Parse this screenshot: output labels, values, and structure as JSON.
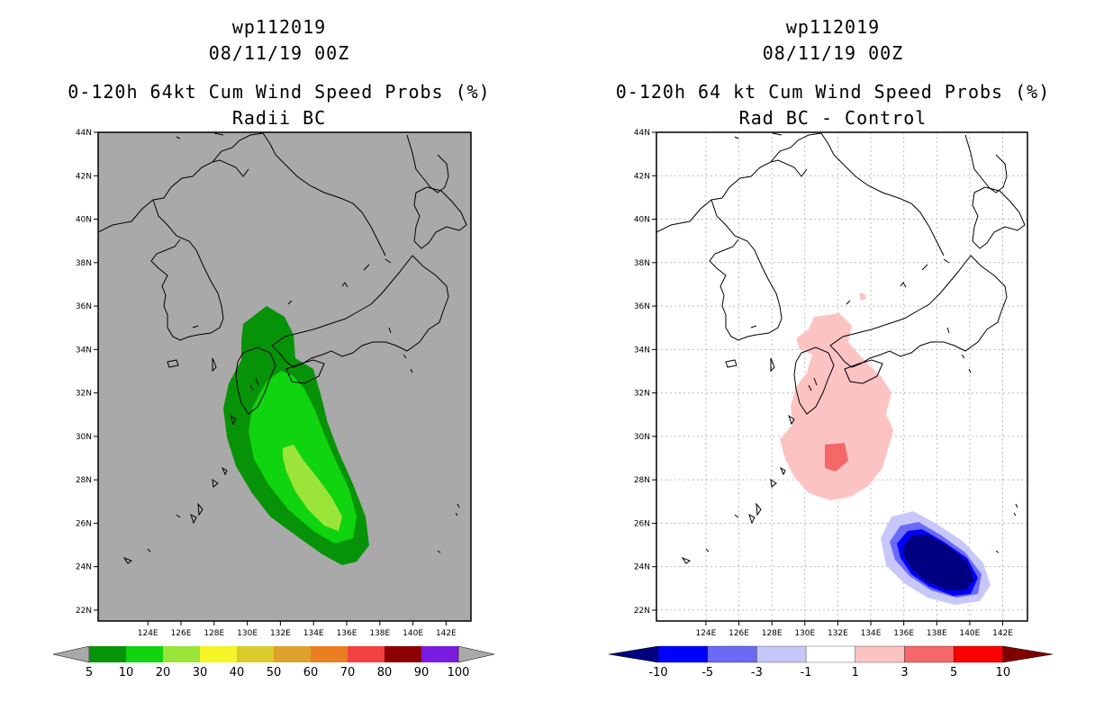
{
  "left_panel": {
    "storm_id": "wp112019",
    "date": "08/11/19 00Z",
    "title": "0-120h 64kt Cum Wind Speed Probs (%)",
    "subtitle": "Radii BC",
    "background_color": "#a9a9a9",
    "colorbar": {
      "labels": [
        "5",
        "10",
        "20",
        "30",
        "40",
        "50",
        "60",
        "70",
        "80",
        "90",
        "100"
      ],
      "colors": [
        "#079307",
        "#0fd40f",
        "#9be43a",
        "#f4f426",
        "#d9cc2a",
        "#dea12b",
        "#ea7f22",
        "#f24141",
        "#8c0000",
        "#7a1be0"
      ],
      "arrow_color": "#a9a9a9"
    }
  },
  "right_panel": {
    "storm_id": "wp112019",
    "date": "08/11/19 00Z",
    "title": "0-120h 64 kt Cum Wind Speed Probs (%)",
    "subtitle": "Rad BC - Control",
    "background_color": "#ffffff",
    "colorbar": {
      "labels": [
        "-10",
        "-5",
        "-3",
        "-1",
        "1",
        "3",
        "5",
        "10"
      ],
      "colors": [
        "#0000ff",
        "#6a6af4",
        "#c7c7fb",
        "#ffffff",
        "#fcc3c3",
        "#f46868",
        "#ff0000"
      ],
      "left_arrow_color": "#000080",
      "right_arrow_color": "#800000"
    }
  },
  "axes": {
    "lon_labels": [
      "124E",
      "126E",
      "128E",
      "130E",
      "132E",
      "134E",
      "136E",
      "138E",
      "140E",
      "142E"
    ],
    "lat_labels": [
      "22N",
      "24N",
      "26N",
      "28N",
      "30N",
      "32N",
      "34N",
      "36N",
      "38N",
      "40N",
      "42N",
      "44N"
    ],
    "lon_values": [
      124,
      126,
      128,
      130,
      132,
      134,
      136,
      138,
      140,
      142
    ],
    "lat_values": [
      22,
      24,
      26,
      28,
      30,
      32,
      34,
      36,
      38,
      40,
      42,
      44
    ]
  }
}
